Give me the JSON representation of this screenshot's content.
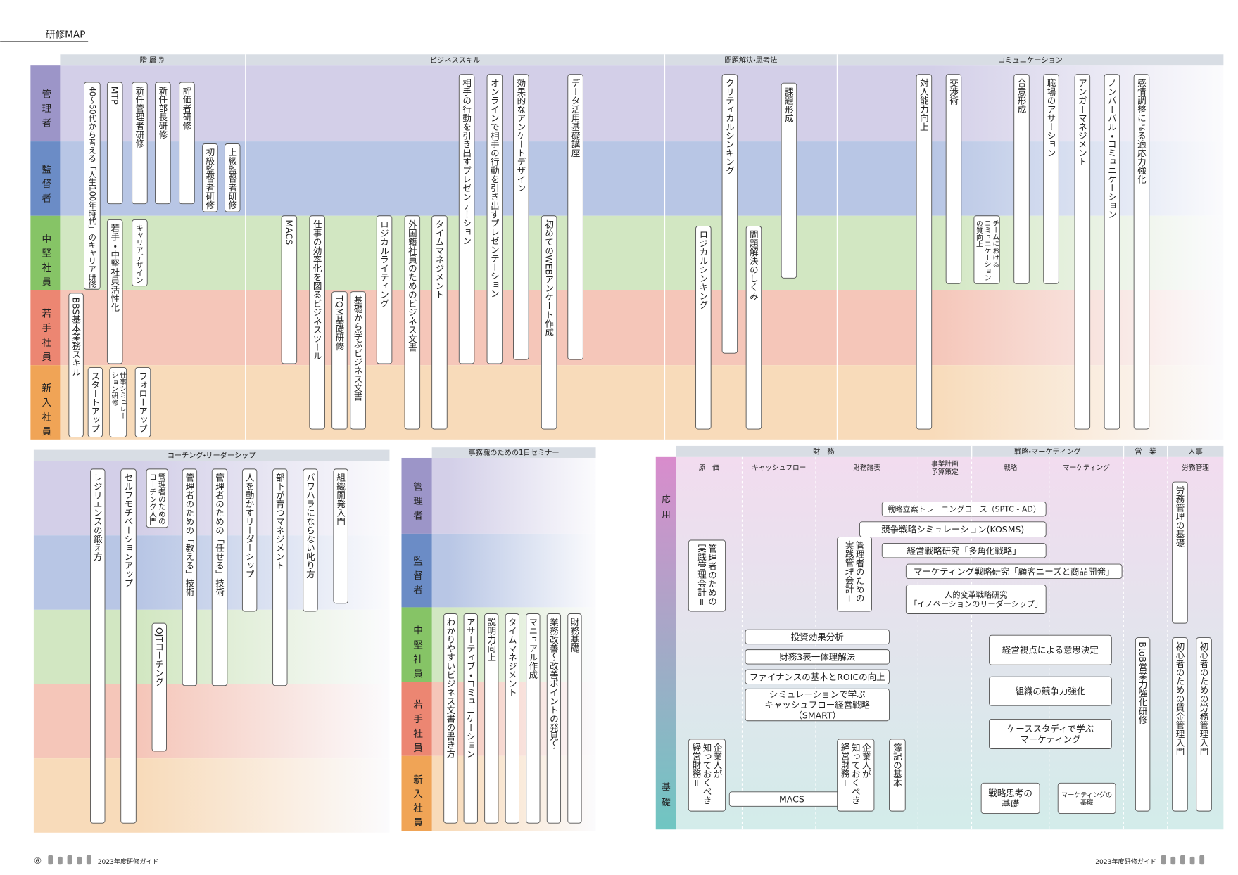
{
  "header": {
    "title": "研修MAP"
  },
  "levels": [
    "管理者",
    "監督者",
    "中堅社員",
    "若手社員",
    "新入社員"
  ],
  "top_map": {
    "columns": [
      "階 層 別",
      "ビジネススキル",
      "問題解決・思考法",
      "コミュニケーション"
    ],
    "courses": [
      "40～50代から考える「人生100年時代」のキャリア研修",
      "MTP",
      "新任管理者研修",
      "新任部長研修",
      "評価者研修",
      "初級監督者研修",
      "上級監督者研修",
      "若手・中堅社員活性化",
      "キャリアデザイン",
      "BBS基本業務スキル",
      "スタートアップ",
      "仕事シミュレー\nション研修",
      "フォローアップ",
      "MACS",
      "仕事の効率化を図るビジネスツール",
      "TQM基礎研修",
      "基礎から学ぶビジネス文書",
      "ロジカルライティング",
      "外国籍社員のためのビジネス文書",
      "タイムマネジメント",
      "相手の行動を引き出すプレゼンテーション",
      "オンラインで相手の行動を引き出すプレゼンテーション",
      "効果的なアンケートデザイン",
      "初めてのWEBアンケート作成",
      "データ活用基礎講座",
      "ロジカルシンキング",
      "クリティカルシンキング",
      "課題形成",
      "問題解決のしくみ",
      "対人能力向上",
      "交渉術",
      "チームにおける\nコミュニケーション\nの質向上",
      "合意形成",
      "職場のアサーション",
      "アンガーマネジメント",
      "ノンバーバル・コミュニケーション",
      "感情調整による適応力強化"
    ]
  },
  "coaching": {
    "title": "コーチング・リーダーシップ",
    "courses": [
      "レジリエンスの鍛え方",
      "セルフモチベーションアップ",
      "管理者のための\nコーチング入門",
      "OJTコーチング",
      "管理者のための「教える」技術",
      "管理者のための「任せる」技術",
      "人を動かすリーダーシップ",
      "部下が育つマネジメント",
      "パワハラにならない叱り方",
      "組織開発入門"
    ]
  },
  "seminar": {
    "title": "事務職のための1日セミナー",
    "courses": [
      "わかりやすいビジネス文書の書き方",
      "アサーティブ・コミュニケーション",
      "説明力向上",
      "タイムマネジメント",
      "マニュアル作成",
      "業務改善～改善ポイントの発見～",
      "財務基礎"
    ]
  },
  "finance": {
    "groups": [
      "財　務",
      "戦略・マーケティング",
      "営　業",
      "人事"
    ],
    "columns": [
      "原　価",
      "キャッシュフロー",
      "財務諸表",
      "事業計画\n予算策定",
      "戦略",
      "マーケティング",
      "労務管理"
    ],
    "levels": [
      "応用",
      "基礎"
    ],
    "courses": [
      "戦略立案トレーニングコース（SPTC - AD）",
      "競争戦略シミュレーション(KOSMS)",
      "経営戦略研究「多角化戦略」",
      "マーケティング戦略研究「顧客ニーズと商品開発」",
      "人的変革戦略研究\n「イノベーションのリーダーシップ」",
      "投資効果分析",
      "財務3表一体理解法",
      "ファイナンスの基本とROICの向上",
      "シミュレーションで学ぶ\nキャッシュフロー経営戦略\n（SMART）",
      "MACS",
      "経営視点による意思決定",
      "組織の競争力強化",
      "ケーススタディで学ぶ\nマーケティング",
      "戦略思考の\n基礎",
      "マーケティングの\n基礎",
      "管理者のための\n実践管理会計Ⅱ",
      "管理者のための\n実践管理会計Ⅰ",
      "企業人が\n知っておくべき\n経営財務Ⅱ",
      "企業人が\n知っておくべき\n経営財務Ⅰ",
      "簿記の基本",
      "BtoB営業力強化研修",
      "労務管理の基礎",
      "初心者のための賃金管理入門",
      "初心者のための労務管理入門"
    ]
  },
  "footer": {
    "page": "⑥",
    "guide_left": "2023年度研修ガイド",
    "guide_right": "2023年度研修ガイド"
  }
}
